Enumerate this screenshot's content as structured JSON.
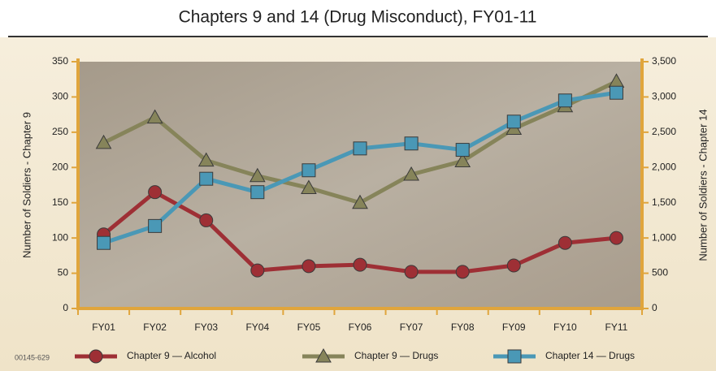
{
  "chart_data": {
    "type": "line",
    "title": "Chapters 9 and 14 (Drug Misconduct), FY01-11",
    "y_label": "Number of Soldiers - Chapter 9",
    "y2_label": "Number of Soldiers - Chapter 14",
    "footnote": "00145-629",
    "categories": [
      "FY01",
      "FY02",
      "FY03",
      "FY04",
      "FY05",
      "FY06",
      "FY07",
      "FY08",
      "FY09",
      "FY10",
      "FY11"
    ],
    "series": [
      {
        "name": "Chapter 9 — Alcohol",
        "color": "#9e2f35",
        "marker": "circle",
        "axis": "y",
        "values": [
          105,
          165,
          125,
          54,
          60,
          62,
          52,
          52,
          61,
          93,
          100
        ]
      },
      {
        "name": "Chapter 9 — Drugs",
        "color": "#86845a",
        "marker": "triangle",
        "axis": "y",
        "values": [
          235,
          271,
          210,
          188,
          171,
          150,
          190,
          209,
          255,
          287,
          322
        ]
      },
      {
        "name": "Chapter 14 — Drugs",
        "color": "#4a98b6",
        "marker": "square",
        "axis": "y2",
        "values": [
          930,
          1170,
          1840,
          1650,
          1960,
          2270,
          2340,
          2250,
          2650,
          2950,
          3060
        ]
      }
    ],
    "ylim": [
      0,
      350
    ],
    "yticks": [
      0,
      50,
      100,
      150,
      200,
      250,
      300,
      350
    ],
    "y2lim": [
      0,
      3500
    ],
    "y2ticks": [
      0,
      500,
      {
        "value": 1000,
        "label": "1,000"
      },
      {
        "value": 1500,
        "label": "1,500"
      },
      {
        "value": 2000,
        "label": "2,000"
      },
      {
        "value": 2500,
        "label": "2,500"
      },
      {
        "value": 3000,
        "label": "3,000"
      },
      {
        "value": 3500,
        "label": "3,500"
      }
    ],
    "grid": false,
    "legend": "bottom"
  }
}
